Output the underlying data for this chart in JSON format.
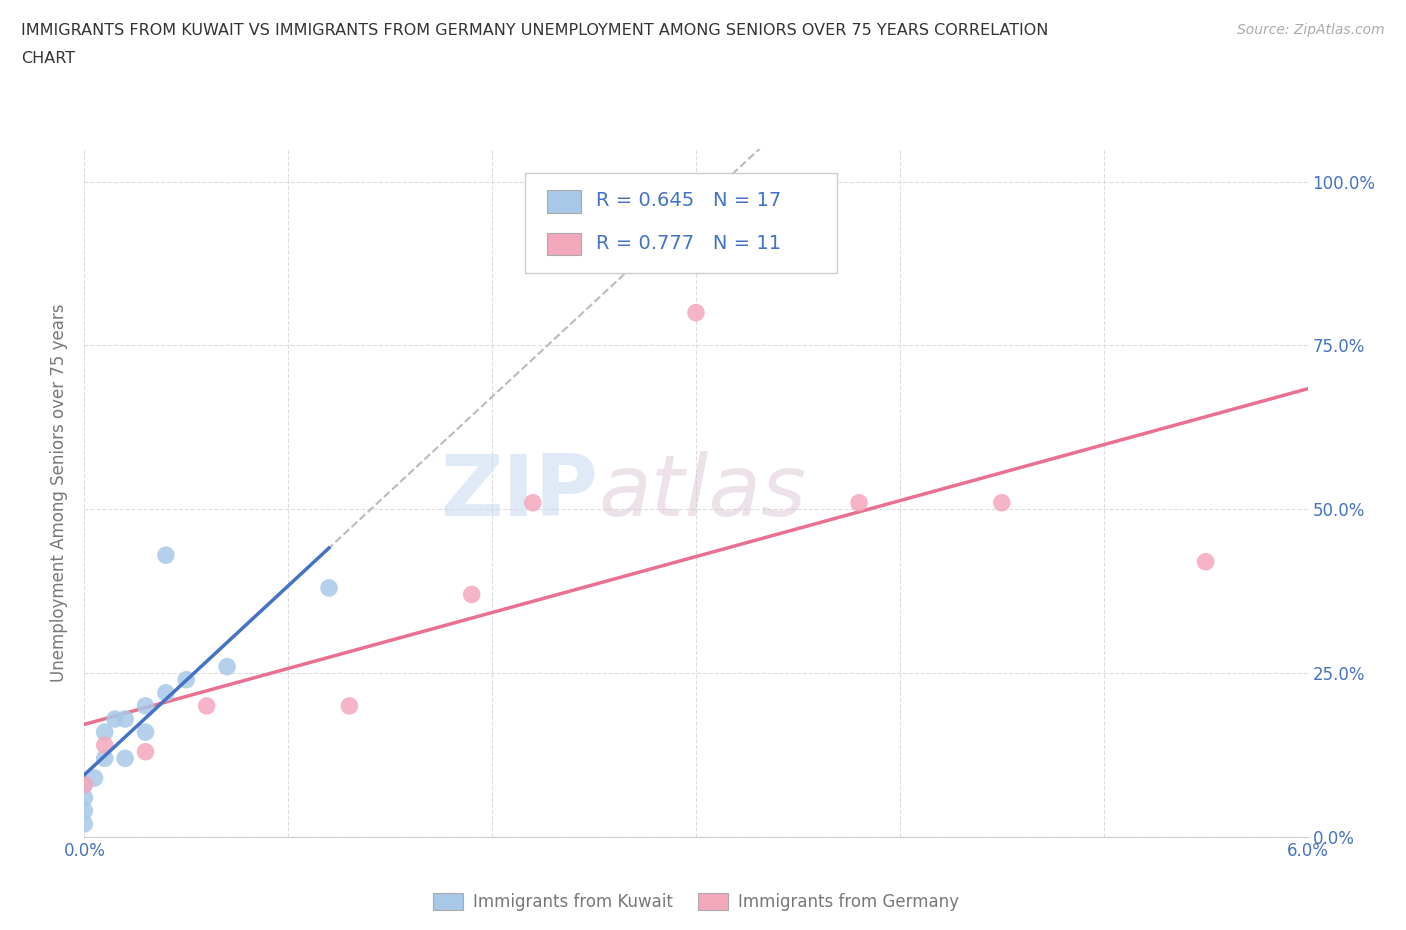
{
  "title_line1": "IMMIGRANTS FROM KUWAIT VS IMMIGRANTS FROM GERMANY UNEMPLOYMENT AMONG SENIORS OVER 75 YEARS CORRELATION",
  "title_line2": "CHART",
  "source": "Source: ZipAtlas.com",
  "ylabel": "Unemployment Among Seniors over 75 years",
  "xlim": [
    0.0,
    0.06
  ],
  "ylim": [
    0.0,
    1.05
  ],
  "ytick_vals": [
    0.0,
    0.25,
    0.5,
    0.75,
    1.0
  ],
  "ytick_labels": [
    "0.0%",
    "25.0%",
    "50.0%",
    "75.0%",
    "100.0%"
  ],
  "kuwait_color": "#a8c8e8",
  "germany_color": "#f4a8bc",
  "kuwait_R": 0.645,
  "kuwait_N": 17,
  "germany_R": 0.777,
  "germany_N": 11,
  "kuwait_line_color": "#4472c4",
  "germany_line_color": "#e87090",
  "kuwait_dashed_color": "#bbbbbb",
  "kuwait_points_x": [
    0.0,
    0.0,
    0.0,
    0.0,
    0.0005,
    0.001,
    0.001,
    0.0015,
    0.002,
    0.002,
    0.003,
    0.003,
    0.004,
    0.004,
    0.005,
    0.007,
    0.012
  ],
  "kuwait_points_y": [
    0.02,
    0.04,
    0.06,
    0.08,
    0.09,
    0.12,
    0.16,
    0.18,
    0.12,
    0.18,
    0.16,
    0.2,
    0.22,
    0.43,
    0.24,
    0.26,
    0.38
  ],
  "germany_points_x": [
    0.0,
    0.001,
    0.003,
    0.006,
    0.013,
    0.019,
    0.022,
    0.03,
    0.038,
    0.045,
    0.055
  ],
  "germany_points_y": [
    0.08,
    0.14,
    0.13,
    0.2,
    0.2,
    0.37,
    0.51,
    0.8,
    0.51,
    0.51,
    0.42
  ],
  "watermark_ZIP": "ZIP",
  "watermark_atlas": "atlas",
  "background_color": "#ffffff",
  "grid_color": "#dddddd",
  "tick_color": "#4472c4",
  "label_color": "#777777"
}
